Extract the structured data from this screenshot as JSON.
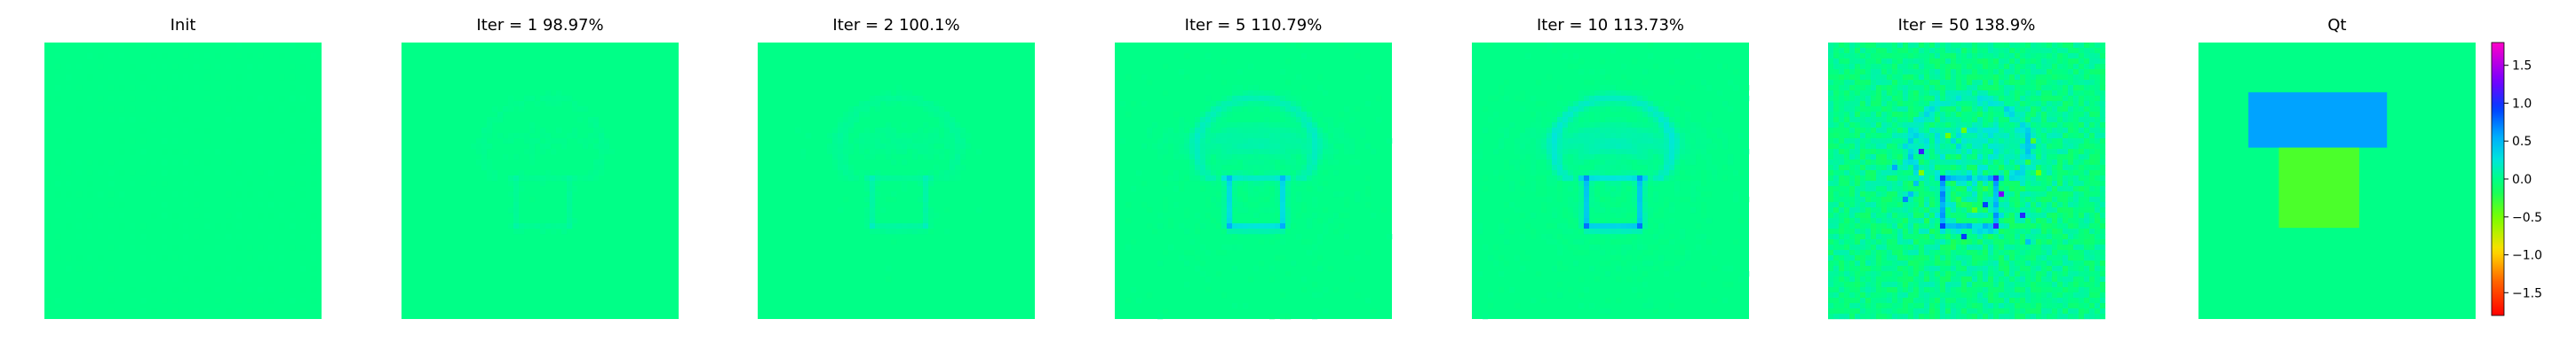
{
  "chart_data": {
    "type": "heatmap",
    "colormap": "gist_rainbow (perceptually cycling: green ≈ 0, blue/purple positive, yellow/orange/red negative)",
    "colorbar": {
      "vmin": -1.8,
      "vmax": 1.8,
      "ticks": [
        "1.5",
        "1.0",
        "0.5",
        "0.0",
        "−0.5",
        "−1.0",
        "−1.5"
      ],
      "tick_values": [
        1.5,
        1.0,
        0.5,
        0.0,
        -0.5,
        -1.0,
        -1.5
      ]
    },
    "axis": "off",
    "grid": false,
    "panels": [
      {
        "title": "Init",
        "title_text": "Init",
        "structure": "uniform",
        "base_value": 0.0,
        "description": "nearly uniform field (all zeros)"
      },
      {
        "title": "Iter = 1    98.97%",
        "title_text": "Iter = 1    98.97%",
        "iter": 1,
        "percent": "98.97%",
        "structure": "faint_recon",
        "base_value": 0.0,
        "contrast": 0.08
      },
      {
        "title": "Iter = 2    100.1%",
        "title_text": "Iter = 2    100.1%",
        "iter": 2,
        "percent": "100.1%",
        "structure": "faint_recon",
        "base_value": 0.0,
        "contrast": 0.16
      },
      {
        "title": "Iter = 5    110.79%",
        "title_text": "Iter = 5    110.79%",
        "iter": 5,
        "percent": "110.79%",
        "structure": "mushroom",
        "base_value": 0.0,
        "contrast": 0.55
      },
      {
        "title": "Iter = 10    113.73%",
        "title_text": "Iter = 10    113.73%",
        "iter": 10,
        "percent": "113.73%",
        "structure": "mushroom",
        "base_value": 0.0,
        "contrast": 0.75
      },
      {
        "title": "Iter = 50    138.9%",
        "title_text": "Iter = 50    138.9%",
        "iter": 50,
        "percent": "138.9%",
        "structure": "noisy",
        "base_value": 0.0,
        "contrast": 1.0
      },
      {
        "title": "Qt",
        "title_text": "Qt",
        "structure": "truth",
        "base_value": 0.0,
        "blocks": [
          {
            "name": "top block",
            "value": 0.6,
            "x": [
              0.18,
              0.68
            ],
            "y": [
              0.18,
              0.38
            ]
          },
          {
            "name": "bottom block",
            "value": -0.35,
            "x": [
              0.29,
              0.58
            ],
            "y": [
              0.38,
              0.67
            ]
          }
        ]
      }
    ]
  }
}
